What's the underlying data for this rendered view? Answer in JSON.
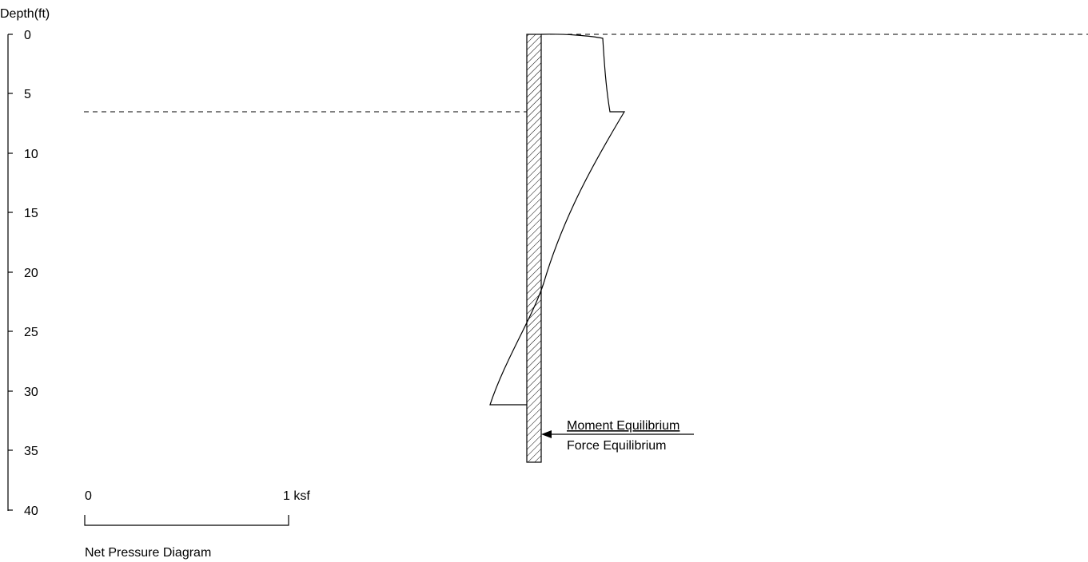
{
  "axis": {
    "title": "Depth(ft)",
    "ticks": [
      "0",
      "5",
      "10",
      "15",
      "20",
      "25",
      "30",
      "35",
      "40"
    ]
  },
  "scale_bar": {
    "start_label": "0",
    "end_label": "1 ksf",
    "caption": "Net Pressure Diagram"
  },
  "annotations": {
    "moment": "Moment Equilibrium",
    "force": "Force Equilibrium"
  },
  "colors": {
    "ink": "#000000",
    "background": "#ffffff"
  }
}
